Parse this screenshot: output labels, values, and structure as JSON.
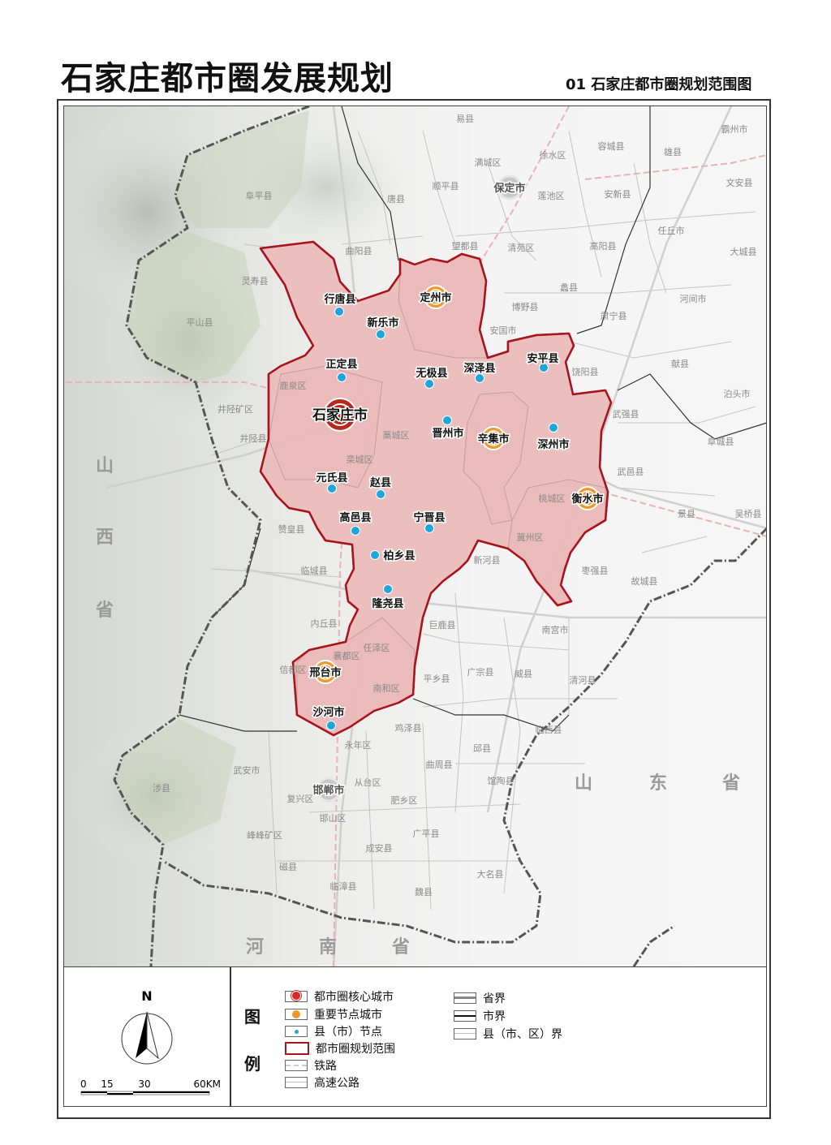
{
  "title": "石家庄都市圈发展规划",
  "subtitle": "01  石家庄都市圈规划范围图",
  "colors": {
    "planning_fill": "#efc3c3",
    "planning_border": "#a8141c",
    "core_city": "#b8281c",
    "node_city": "#f0962a",
    "county_node": "#1ea5dc",
    "label_gray": "#8a8a8a"
  },
  "map": {
    "core_city": "石家庄市",
    "node_cities": [
      "定州市",
      "辛集市",
      "衡水市",
      "邢台市"
    ],
    "county_nodes": [
      "行唐县",
      "新乐市",
      "正定县",
      "无极县",
      "深泽县",
      "安平县",
      "晋州市",
      "深州市",
      "元氏县",
      "赵县",
      "高邑县",
      "宁晋县",
      "柏乡县",
      "隆尧县",
      "沙河市"
    ],
    "other_cities": [
      "保定市",
      "邯郸市"
    ],
    "place_labels": [
      "易县",
      "霸州市",
      "容城县",
      "雄县",
      "满城区",
      "徐水区",
      "顺平县",
      "莲池区",
      "安新县",
      "文安县",
      "阜平县",
      "唐县",
      "任丘市",
      "曲阳县",
      "望都县",
      "清苑区",
      "高阳县",
      "大城县",
      "灵寿县",
      "蠡县",
      "平山县",
      "博野县",
      "肃宁县",
      "河间市",
      "安国市",
      "献县",
      "饶阳县",
      "泊头市",
      "鹿泉区",
      "井陉矿区",
      "武强县",
      "井陉县",
      "藁城区",
      "阜城县",
      "栾城区",
      "武邑县",
      "桃城区",
      "景县",
      "吴桥县",
      "赞皇县",
      "冀州区",
      "新河县",
      "临城县",
      "枣强县",
      "故城县",
      "内丘县",
      "巨鹿县",
      "南宫市",
      "任泽区",
      "襄都区",
      "信都区",
      "广宗县",
      "威县",
      "平乡县",
      "清河县",
      "南和区",
      "鸡泽县",
      "临西县",
      "永年区",
      "邱县",
      "曲周县",
      "武安市",
      "从台区",
      "馆陶县",
      "涉县",
      "复兴区",
      "肥乡区",
      "邯山区",
      "峰峰矿区",
      "广平县",
      "成安县",
      "磁县",
      "大名县",
      "临漳县",
      "魏县"
    ],
    "province_labels": [
      [
        "山",
        "西",
        "省"
      ],
      [
        "山",
        "东",
        "省"
      ],
      [
        "河",
        "南",
        "省"
      ]
    ]
  },
  "legend": {
    "heading": [
      "图",
      "例"
    ],
    "north": "N",
    "scale_ticks": [
      "0",
      "15",
      "30",
      "60KM"
    ],
    "items": [
      {
        "label": "都市圈核心城市",
        "icon": "core-city-symbol"
      },
      {
        "label": "重要节点城市",
        "icon": "node-city-symbol"
      },
      {
        "label": "县（市）节点",
        "icon": "county-node-symbol"
      },
      {
        "label": "都市圈规划范围",
        "icon": "planning-boundary-symbol"
      },
      {
        "label": "铁路",
        "icon": "railway-symbol"
      },
      {
        "label": "高速公路",
        "icon": "expressway-symbol"
      },
      {
        "label": "省界",
        "icon": "province-boundary-symbol"
      },
      {
        "label": "市界",
        "icon": "city-boundary-symbol"
      },
      {
        "label": "县（市、区）界",
        "icon": "county-boundary-symbol"
      }
    ]
  }
}
